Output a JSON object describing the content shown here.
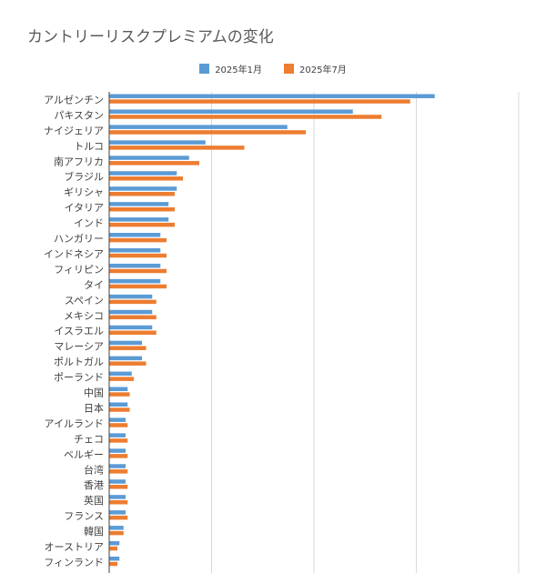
{
  "chart_data": {
    "type": "bar",
    "orientation": "horizontal",
    "title": "カントリーリスクプレミアムの変化",
    "xlabel": "",
    "ylabel": "",
    "xlim": [
      0,
      20
    ],
    "x_gridlines": [
      0,
      5,
      10,
      15,
      20
    ],
    "grid": true,
    "legend_position": "top",
    "categories": [
      "アルゼンチン",
      "パキスタン",
      "ナイジェリア",
      "トルコ",
      "南アフリカ",
      "ブラジル",
      "ギリシャ",
      "イタリア",
      "インド",
      "ハンガリー",
      "インドネシア",
      "フィリピン",
      "タイ",
      "スペイン",
      "メキシコ",
      "イスラエル",
      "マレーシア",
      "ポルトガル",
      "ポーランド",
      "中国",
      "日本",
      "アイルランド",
      "チェコ",
      "ベルギー",
      "台湾",
      "香港",
      "英国",
      "フランス",
      "韓国",
      "オーストリア",
      "フィンランド"
    ],
    "series": [
      {
        "name": "2025年1月",
        "color": "#5b9bd5",
        "values": [
          15.9,
          11.9,
          8.7,
          4.7,
          3.9,
          3.3,
          3.3,
          2.9,
          2.9,
          2.5,
          2.5,
          2.5,
          2.5,
          2.1,
          2.1,
          2.1,
          1.6,
          1.6,
          1.1,
          0.9,
          0.9,
          0.8,
          0.8,
          0.8,
          0.8,
          0.8,
          0.8,
          0.8,
          0.7,
          0.5,
          0.5
        ]
      },
      {
        "name": "2025年7月",
        "color": "#ed7d31",
        "values": [
          14.7,
          13.3,
          9.6,
          6.6,
          4.4,
          3.6,
          3.2,
          3.2,
          3.2,
          2.8,
          2.8,
          2.8,
          2.8,
          2.3,
          2.3,
          2.3,
          1.8,
          1.8,
          1.2,
          1.0,
          1.0,
          0.9,
          0.9,
          0.9,
          0.9,
          0.9,
          0.9,
          0.9,
          0.7,
          0.4,
          0.4
        ]
      }
    ]
  }
}
